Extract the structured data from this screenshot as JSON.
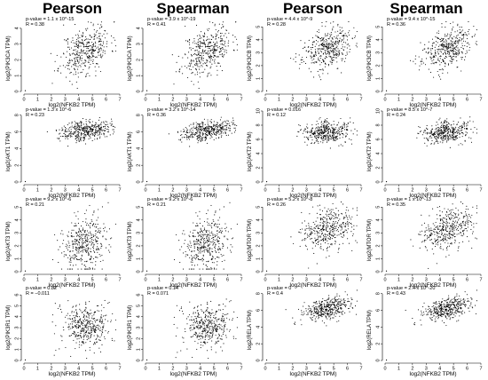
{
  "column_headers": [
    "Pearson",
    "Spearman",
    "Pearson",
    "Spearman"
  ],
  "chart_data": [
    {
      "type": "scatter",
      "method": "Pearson",
      "xlabel": "log2(NFKB2 TPM)",
      "ylabel": "log2(PIK3CA TPM)",
      "p_value": "p-value = 1.1 x 10^-15",
      "r": "R = 0.38",
      "xlim": [
        0,
        7
      ],
      "ylim": [
        0,
        4.5
      ],
      "xticks": [
        0,
        1,
        2,
        3,
        4,
        5,
        6,
        7
      ],
      "yticks": [
        0,
        1,
        2,
        3,
        4
      ],
      "cluster": {
        "x_center": 4.5,
        "x_sd": 0.9,
        "y_center": 2.6,
        "y_sd": 0.8,
        "r": 0.38
      },
      "n": 400,
      "seed": 11
    },
    {
      "type": "scatter",
      "method": "Spearman",
      "xlabel": "log2(NFKB2 TPM)",
      "ylabel": "log2(PIK3CA TPM)",
      "p_value": "p-value = 3.9 x 10^-19",
      "r": "R = 0.41",
      "xlim": [
        0,
        7
      ],
      "ylim": [
        0,
        4.5
      ],
      "xticks": [
        0,
        1,
        2,
        3,
        4,
        5,
        6,
        7
      ],
      "yticks": [
        0,
        1,
        2,
        3,
        4
      ],
      "cluster": {
        "x_center": 4.5,
        "x_sd": 0.9,
        "y_center": 2.6,
        "y_sd": 0.8,
        "r": 0.41
      },
      "n": 400,
      "seed": 11
    },
    {
      "type": "scatter",
      "method": "Pearson",
      "xlabel": "log2(NFKB2 TPM)",
      "ylabel": "log2(PIK3CB TPM)",
      "p_value": "p-value = 4.4 x 10^-9",
      "r": "R = 0.28",
      "xlim": [
        0,
        7
      ],
      "ylim": [
        0,
        5.5
      ],
      "xticks": [
        0,
        1,
        2,
        3,
        4,
        5,
        6,
        7
      ],
      "yticks": [
        0,
        1,
        2,
        3,
        4,
        5
      ],
      "cluster": {
        "x_center": 4.5,
        "x_sd": 0.9,
        "y_center": 3.3,
        "y_sd": 0.8,
        "r": 0.28
      },
      "n": 400,
      "seed": 23
    },
    {
      "type": "scatter",
      "method": "Spearman",
      "xlabel": "log2(NFKB2 TPM)",
      "ylabel": "log2(PIK3CB TPM)",
      "p_value": "p-value = 9.4 x 10^-15",
      "r": "R = 0.36",
      "xlim": [
        0,
        7
      ],
      "ylim": [
        0,
        5.5
      ],
      "xticks": [
        0,
        1,
        2,
        3,
        4,
        5,
        6,
        7
      ],
      "yticks": [
        0,
        1,
        2,
        3,
        4,
        5
      ],
      "cluster": {
        "x_center": 4.5,
        "x_sd": 0.9,
        "y_center": 3.3,
        "y_sd": 0.8,
        "r": 0.36
      },
      "n": 400,
      "seed": 23
    },
    {
      "type": "scatter",
      "method": "Pearson",
      "xlabel": "log2(NFKB2 TPM)",
      "ylabel": "log2(AKT1 TPM)",
      "p_value": "p-value = 1.3 x 10^-6",
      "r": "R = 0.23",
      "xlim": [
        0,
        7
      ],
      "ylim": [
        0,
        8.5
      ],
      "xticks": [
        0,
        1,
        2,
        3,
        4,
        5,
        6,
        7
      ],
      "yticks": [
        0,
        2,
        4,
        6,
        8
      ],
      "cluster": {
        "x_center": 4.5,
        "x_sd": 0.9,
        "y_center": 6.2,
        "y_sd": 0.6,
        "r": 0.23
      },
      "n": 400,
      "seed": 37
    },
    {
      "type": "scatter",
      "method": "Spearman",
      "xlabel": "log2(NFKB2 TPM)",
      "ylabel": "log2(AKT1 TPM)",
      "p_value": "p-value = 3.2 x 10^-14",
      "r": "R = 0.36",
      "xlim": [
        0,
        7
      ],
      "ylim": [
        0,
        8.5
      ],
      "xticks": [
        0,
        1,
        2,
        3,
        4,
        5,
        6,
        7
      ],
      "yticks": [
        0,
        2,
        4,
        6,
        8
      ],
      "cluster": {
        "x_center": 4.5,
        "x_sd": 0.9,
        "y_center": 6.2,
        "y_sd": 0.6,
        "r": 0.36
      },
      "n": 400,
      "seed": 37
    },
    {
      "type": "scatter",
      "method": "Pearson",
      "xlabel": "log2(NFKB2 TPM)",
      "ylabel": "log2(AKT2 TPM)",
      "p_value": "p-value = 0.016",
      "r": "R = 0.12",
      "xlim": [
        0,
        7
      ],
      "ylim": [
        0,
        10
      ],
      "xticks": [
        0,
        1,
        2,
        3,
        4,
        5,
        6,
        7
      ],
      "yticks": [
        0,
        2,
        4,
        6,
        8,
        10
      ],
      "cluster": {
        "x_center": 4.5,
        "x_sd": 0.9,
        "y_center": 7.0,
        "y_sd": 0.8,
        "r": 0.12
      },
      "n": 400,
      "seed": 41
    },
    {
      "type": "scatter",
      "method": "Spearman",
      "xlabel": "log2(NFKB2 TPM)",
      "ylabel": "log2(AKT2 TPM)",
      "p_value": "p-value = 8.5 x 10^-7",
      "r": "R = 0.24",
      "xlim": [
        0,
        7
      ],
      "ylim": [
        0,
        10
      ],
      "xticks": [
        0,
        1,
        2,
        3,
        4,
        5,
        6,
        7
      ],
      "yticks": [
        0,
        2,
        4,
        6,
        8,
        10
      ],
      "cluster": {
        "x_center": 4.5,
        "x_sd": 0.9,
        "y_center": 7.0,
        "y_sd": 0.8,
        "r": 0.24
      },
      "n": 400,
      "seed": 41
    },
    {
      "type": "scatter",
      "method": "Pearson",
      "xlabel": "log2(NFKB2 TPM)",
      "ylabel": "log2(AKT3 TPM)",
      "p_value": "p-value = 9.2 x 10^-6",
      "r": "R = 0.21",
      "xlim": [
        0,
        7
      ],
      "ylim": [
        0,
        5.5
      ],
      "xticks": [
        0,
        1,
        2,
        3,
        4,
        5,
        6,
        7
      ],
      "yticks": [
        0,
        1,
        2,
        3,
        4,
        5
      ],
      "cluster": {
        "x_center": 4.5,
        "x_sd": 0.9,
        "y_center": 2.1,
        "y_sd": 1.1,
        "r": 0.21
      },
      "n": 400,
      "seed": 53
    },
    {
      "type": "scatter",
      "method": "Spearman",
      "xlabel": "log2(NFKB2 TPM)",
      "ylabel": "log2(AKT3 TPM)",
      "p_value": "p-value = 9.2 x 10^-6",
      "r": "R = 0.21",
      "xlim": [
        0,
        7
      ],
      "ylim": [
        0,
        5.5
      ],
      "xticks": [
        0,
        1,
        2,
        3,
        4,
        5,
        6,
        7
      ],
      "yticks": [
        0,
        1,
        2,
        3,
        4,
        5
      ],
      "cluster": {
        "x_center": 4.5,
        "x_sd": 0.9,
        "y_center": 2.1,
        "y_sd": 1.1,
        "r": 0.21
      },
      "n": 400,
      "seed": 53
    },
    {
      "type": "scatter",
      "method": "Pearson",
      "xlabel": "log2(NFKB2 TPM)",
      "ylabel": "log2(MTOR TPM)",
      "p_value": "p-value = 5.2 x 10^-8",
      "r": "R = 0.26",
      "xlim": [
        0,
        7
      ],
      "ylim": [
        0,
        5.5
      ],
      "xticks": [
        0,
        1,
        2,
        3,
        4,
        5,
        6,
        7
      ],
      "yticks": [
        0,
        1,
        2,
        3,
        4,
        5
      ],
      "cluster": {
        "x_center": 4.5,
        "x_sd": 0.9,
        "y_center": 3.2,
        "y_sd": 0.8,
        "r": 0.26
      },
      "n": 400,
      "seed": 67
    },
    {
      "type": "scatter",
      "method": "Spearman",
      "xlabel": "log2(NFKB2 TPM)",
      "ylabel": "log2(MTOR TPM)",
      "p_value": "p-value = 1 x 10^-13",
      "r": "R = 0.35",
      "xlim": [
        0,
        7
      ],
      "ylim": [
        0,
        5.5
      ],
      "xticks": [
        0,
        1,
        2,
        3,
        4,
        5,
        6,
        7
      ],
      "yticks": [
        0,
        1,
        2,
        3,
        4,
        5
      ],
      "cluster": {
        "x_center": 4.5,
        "x_sd": 0.9,
        "y_center": 3.2,
        "y_sd": 0.8,
        "r": 0.35
      },
      "n": 400,
      "seed": 67
    },
    {
      "type": "scatter",
      "method": "Pearson",
      "xlabel": "log2(NFKB2 TPM)",
      "ylabel": "log2(PIK3R1 TPM)",
      "p_value": "p-value = 0.82",
      "r": "R = −0.011",
      "xlim": [
        0,
        7
      ],
      "ylim": [
        0,
        6.5
      ],
      "xticks": [
        0,
        1,
        2,
        3,
        4,
        5,
        6,
        7
      ],
      "yticks": [
        0,
        1,
        2,
        3,
        4,
        5,
        6
      ],
      "cluster": {
        "x_center": 4.5,
        "x_sd": 0.9,
        "y_center": 3.1,
        "y_sd": 1.0,
        "r": -0.011
      },
      "n": 400,
      "seed": 71
    },
    {
      "type": "scatter",
      "method": "Spearman",
      "xlabel": "log2(NFKB2 TPM)",
      "ylabel": "log2(PIK3R1 TPM)",
      "p_value": "p-value = 0.14",
      "r": "R = 0.071",
      "xlim": [
        0,
        7
      ],
      "ylim": [
        0,
        6.5
      ],
      "xticks": [
        0,
        1,
        2,
        3,
        4,
        5,
        6,
        7
      ],
      "yticks": [
        0,
        1,
        2,
        3,
        4,
        5,
        6
      ],
      "cluster": {
        "x_center": 4.5,
        "x_sd": 0.9,
        "y_center": 3.1,
        "y_sd": 1.0,
        "r": 0.071
      },
      "n": 400,
      "seed": 71
    },
    {
      "type": "scatter",
      "method": "Pearson",
      "xlabel": "log2(NFKB2 TPM)",
      "ylabel": "log2(RELA TPM)",
      "p_value": "p-value = 0",
      "r": "R = 0.4",
      "xlim": [
        0,
        7
      ],
      "ylim": [
        0,
        8.5
      ],
      "xticks": [
        0,
        1,
        2,
        3,
        4,
        5,
        6,
        7
      ],
      "yticks": [
        0,
        2,
        4,
        6,
        8
      ],
      "cluster": {
        "x_center": 4.5,
        "x_sd": 0.9,
        "y_center": 6.2,
        "y_sd": 0.7,
        "r": 0.4
      },
      "n": 400,
      "seed": 83
    },
    {
      "type": "scatter",
      "method": "Spearman",
      "xlabel": "log2(NFKB2 TPM)",
      "ylabel": "log2(RELA TPM)",
      "p_value": "p-value = 2.4 x 10^-20",
      "r": "R = 0.43",
      "xlim": [
        0,
        7
      ],
      "ylim": [
        0,
        8.5
      ],
      "xticks": [
        0,
        1,
        2,
        3,
        4,
        5,
        6,
        7
      ],
      "yticks": [
        0,
        2,
        4,
        6,
        8
      ],
      "cluster": {
        "x_center": 4.5,
        "x_sd": 0.9,
        "y_center": 6.2,
        "y_sd": 0.7,
        "r": 0.43
      },
      "n": 400,
      "seed": 83
    }
  ]
}
